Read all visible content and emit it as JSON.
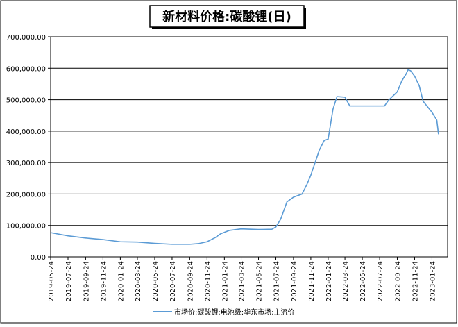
{
  "chart_data": {
    "type": "line",
    "title": "新材料价格:碳酸锂(日)",
    "x": [
      "2019-05-24",
      "2019-07-24",
      "2019-09-24",
      "2019-11-24",
      "2020-01-24",
      "2020-03-24",
      "2020-05-24",
      "2020-07-24",
      "2020-09-24",
      "2020-10-24",
      "2020-11-24",
      "2020-12-24",
      "2021-01-10",
      "2021-02-10",
      "2021-03-24",
      "2021-05-24",
      "2021-07-10",
      "2021-07-24",
      "2021-08-10",
      "2021-09-01",
      "2021-09-24",
      "2021-10-24",
      "2021-11-10",
      "2021-11-24",
      "2021-12-24",
      "2022-01-10",
      "2022-01-24",
      "2022-02-10",
      "2022-02-24",
      "2022-03-24",
      "2022-04-10",
      "2022-07-24",
      "2022-08-10",
      "2022-08-24",
      "2022-09-24",
      "2022-10-10",
      "2022-10-24",
      "2022-11-01",
      "2022-11-10",
      "2022-11-24",
      "2022-12-10",
      "2022-12-24",
      "2023-01-24",
      "2023-02-10",
      "2023-02-16"
    ],
    "series": [
      {
        "name": "市场价:碳酸锂:电池级:华东市场:主流价",
        "color": "#5b9bd5",
        "values": [
          77000,
          67000,
          60000,
          55000,
          48000,
          47000,
          43000,
          40000,
          40000,
          42000,
          48000,
          62000,
          73000,
          84000,
          89000,
          87000,
          88000,
          95000,
          120000,
          175000,
          190000,
          200000,
          230000,
          260000,
          340000,
          370000,
          375000,
          470000,
          510000,
          508000,
          480000,
          480000,
          480000,
          498000,
          525000,
          560000,
          580000,
          595000,
          592000,
          575000,
          545000,
          495000,
          460000,
          435000,
          390000
        ]
      }
    ],
    "xlim": [
      "2019-05-24",
      "2023-03-20"
    ],
    "xticks": [
      "2019-05-24",
      "2019-07-24",
      "2019-09-24",
      "2019-11-24",
      "2020-01-24",
      "2020-03-24",
      "2020-05-24",
      "2020-07-24",
      "2020-09-24",
      "2020-11-24",
      "2021-01-24",
      "2021-03-24",
      "2021-05-24",
      "2021-07-24",
      "2021-09-24",
      "2021-11-24",
      "2022-01-24",
      "2022-03-24",
      "2022-05-24",
      "2022-07-24",
      "2022-09-24",
      "2022-11-24",
      "2023-01-24"
    ],
    "ylim": [
      0,
      700000
    ],
    "yticks": [
      {
        "value": 0,
        "label": "0.00"
      },
      {
        "value": 100000,
        "label": "100,000.00"
      },
      {
        "value": 200000,
        "label": "200,000.00"
      },
      {
        "value": 300000,
        "label": "300,000.00"
      },
      {
        "value": 400000,
        "label": "400,000.00"
      },
      {
        "value": 500000,
        "label": "500,000.00"
      },
      {
        "value": 600000,
        "label": "600,000.00"
      },
      {
        "value": 700000,
        "label": "700,000.00"
      }
    ],
    "grid": true
  }
}
